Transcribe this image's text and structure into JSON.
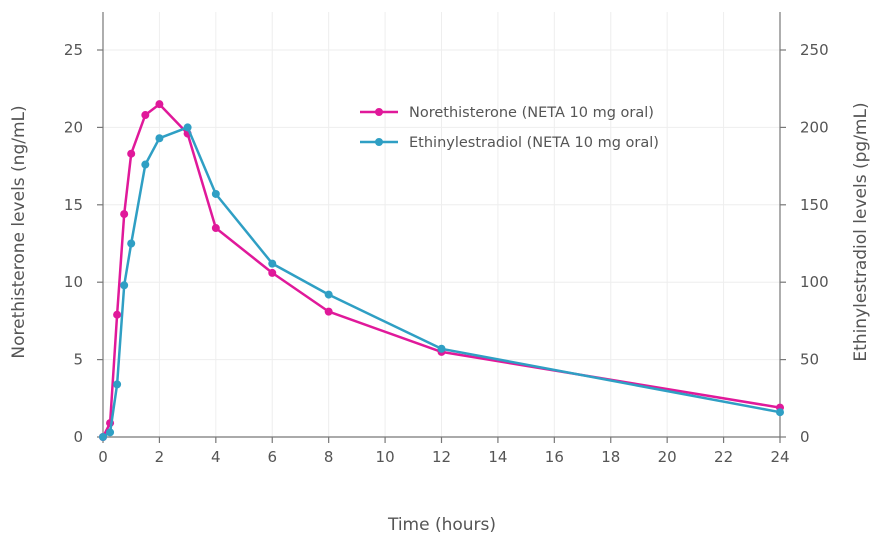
{
  "chart_data": {
    "type": "line",
    "xlabel": "Time (hours)",
    "ylabel": "Norethisterone levels (ng/mL)",
    "y2label": "Ethinylestradiol levels (pg/mL)",
    "xlim": [
      0,
      24
    ],
    "ylim": [
      0,
      25
    ],
    "y2lim": [
      0,
      250
    ],
    "xticks": [
      0,
      2,
      4,
      6,
      8,
      10,
      12,
      14,
      16,
      18,
      20,
      22,
      24
    ],
    "yticks": [
      0,
      5,
      10,
      15,
      20,
      25
    ],
    "y2ticks": [
      0,
      50,
      100,
      150,
      200,
      250
    ],
    "grid": true,
    "legend_position": "top-right",
    "series": [
      {
        "name": "Norethisterone (NETA 10 mg oral)",
        "axis": "left",
        "color": "#e0199a",
        "x": [
          0,
          0.25,
          0.5,
          0.75,
          1,
          1.5,
          2,
          3,
          4,
          6,
          8,
          12,
          24
        ],
        "y": [
          0,
          0.9,
          7.9,
          14.4,
          18.3,
          20.8,
          21.5,
          19.6,
          13.5,
          10.6,
          8.1,
          5.5,
          1.9
        ]
      },
      {
        "name": "Ethinylestradiol (NETA 10 mg oral)",
        "axis": "right",
        "color": "#2f9fc4",
        "x": [
          0,
          0.25,
          0.5,
          0.75,
          1,
          1.5,
          2,
          3,
          4,
          6,
          8,
          12,
          24
        ],
        "y": [
          0,
          3,
          34,
          98,
          125,
          176,
          193,
          200,
          157,
          112,
          92,
          57,
          16
        ]
      }
    ]
  }
}
